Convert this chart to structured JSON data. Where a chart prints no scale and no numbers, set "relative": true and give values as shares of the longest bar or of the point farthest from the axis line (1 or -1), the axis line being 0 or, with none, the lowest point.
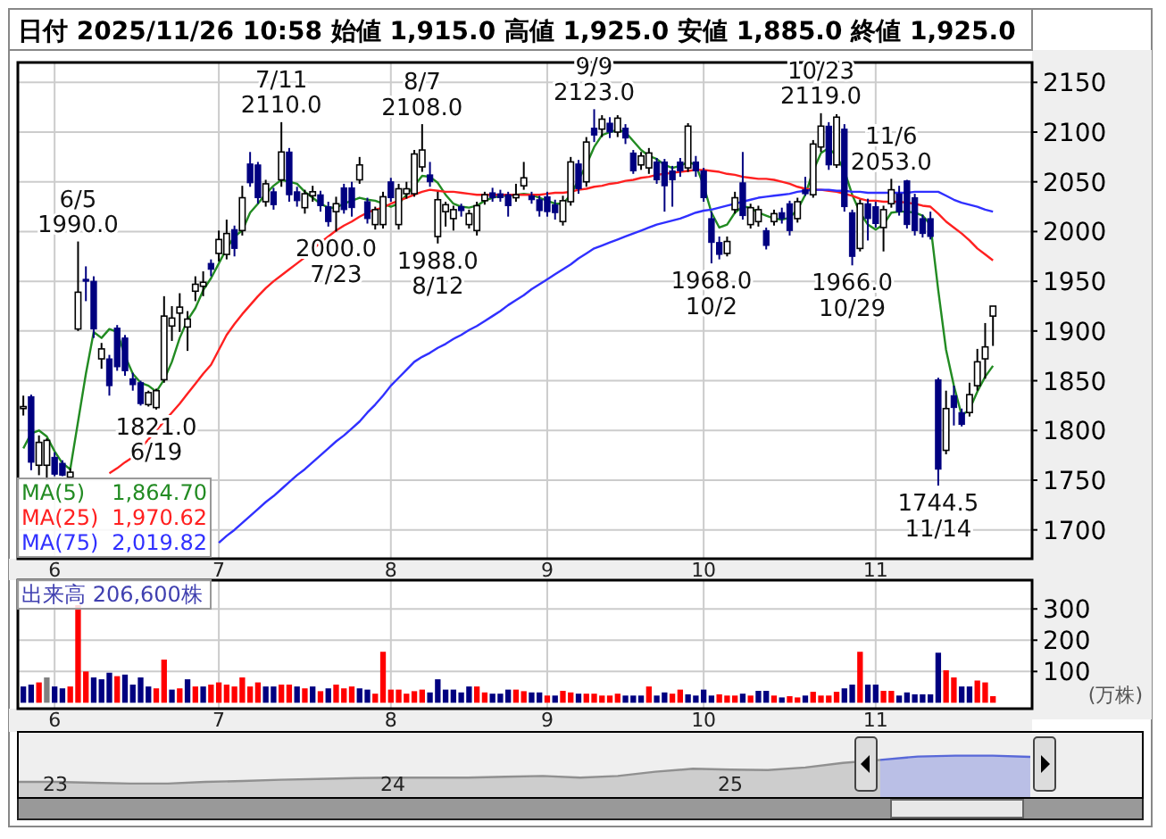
{
  "chart_data": [
    {
      "type": "candlestick",
      "title": "日付 2025/11/26 10:58 始値 1,915.0 高値 1,925.0 安値 1,885.0 終値 1,925.0",
      "categories": [
        null,
        null,
        null,
        null,
        "6",
        null,
        null,
        null,
        null,
        null,
        null,
        null,
        null,
        null,
        null,
        null,
        null,
        null,
        null,
        null,
        null,
        null,
        null,
        null,
        null,
        "7",
        null,
        null,
        null,
        null,
        null,
        null,
        null,
        null,
        null,
        null,
        null,
        null,
        null,
        null,
        null,
        null,
        null,
        null,
        null,
        null,
        null,
        "8",
        null,
        null,
        null,
        null,
        null,
        null,
        null,
        null,
        null,
        null,
        null,
        null,
        null,
        null,
        null,
        null,
        null,
        null,
        null,
        "9",
        null,
        null,
        null,
        null,
        null,
        null,
        null,
        null,
        null,
        null,
        null,
        null,
        null,
        null,
        null,
        null,
        null,
        null,
        null,
        "10",
        null,
        null,
        null,
        null,
        null,
        null,
        null,
        null,
        null,
        null,
        null,
        null,
        null,
        null,
        null,
        null,
        null,
        null,
        null,
        null,
        null,
        "11",
        null,
        null,
        null,
        null,
        null,
        null,
        null,
        null,
        null,
        null,
        null,
        null,
        null,
        null,
        null
      ],
      "ohlc": [
        [
          1822,
          1835,
          1815,
          1824
        ],
        [
          1834,
          1836,
          1760,
          1768
        ],
        [
          1765,
          1795,
          1755,
          1788
        ],
        [
          1765,
          1792,
          1750,
          1790
        ],
        [
          1773,
          1778,
          1754,
          1756
        ],
        [
          1767,
          1770,
          1754,
          1755
        ],
        [
          1753,
          1762,
          1753,
          1758
        ],
        [
          1902,
          1990,
          1900,
          1939
        ],
        [
          1952,
          1965,
          1930,
          1950
        ],
        [
          1950,
          1955,
          1893,
          1902
        ],
        [
          1872,
          1888,
          1862,
          1882
        ],
        [
          1872,
          1876,
          1835,
          1845
        ],
        [
          1903,
          1906,
          1860,
          1864
        ],
        [
          1893,
          1896,
          1855,
          1860
        ],
        [
          1852,
          1858,
          1840,
          1846
        ],
        [
          1848,
          1850,
          1825,
          1827
        ],
        [
          1826,
          1840,
          1824,
          1838
        ],
        [
          1823,
          1842,
          1821,
          1840
        ],
        [
          1851,
          1935,
          1848,
          1915
        ],
        [
          1905,
          1925,
          1890,
          1913
        ],
        [
          1918,
          1938,
          1899,
          1924
        ],
        [
          1904,
          1920,
          1880,
          1912
        ],
        [
          1940,
          1955,
          1930,
          1947
        ],
        [
          1945,
          1960,
          1935,
          1949
        ],
        [
          1968,
          1972,
          1955,
          1962
        ],
        [
          1978,
          2001,
          1970,
          1992
        ],
        [
          1977,
          2012,
          1972,
          1998
        ],
        [
          2002,
          2006,
          1975,
          1983
        ],
        [
          2001,
          2046,
          1996,
          2034
        ],
        [
          2068,
          2080,
          2045,
          2049
        ],
        [
          2067,
          2070,
          2028,
          2034
        ],
        [
          2030,
          2052,
          2025,
          2048
        ],
        [
          2040,
          2044,
          2022,
          2027
        ],
        [
          2052,
          2110,
          2045,
          2080
        ],
        [
          2080,
          2084,
          2030,
          2037
        ],
        [
          2040,
          2045,
          2025,
          2031
        ],
        [
          2024,
          2042,
          2018,
          2038
        ],
        [
          2036,
          2046,
          2030,
          2040
        ],
        [
          2037,
          2041,
          2020,
          2026
        ],
        [
          2025,
          2030,
          2005,
          2010
        ],
        [
          2020,
          2035,
          2000,
          2028
        ],
        [
          2044,
          2048,
          2018,
          2022
        ],
        [
          2044,
          2050,
          2015,
          2024
        ],
        [
          2052,
          2075,
          2048,
          2067
        ],
        [
          2030,
          2034,
          2008,
          2013
        ],
        [
          2007,
          2025,
          2002,
          2022
        ],
        [
          2007,
          2040,
          2003,
          2035
        ],
        [
          2050,
          2054,
          2030,
          2034
        ],
        [
          2007,
          2048,
          2002,
          2043
        ],
        [
          2038,
          2050,
          2033,
          2043
        ],
        [
          2038,
          2082,
          2035,
          2078
        ],
        [
          2065,
          2108,
          2060,
          2082
        ],
        [
          2057,
          2070,
          2045,
          2050
        ],
        [
          1995,
          2040,
          1988,
          2032
        ],
        [
          2020,
          2030,
          2005,
          2027
        ],
        [
          2013,
          2026,
          2001,
          2022
        ],
        [
          2025,
          2028,
          2015,
          2021
        ],
        [
          2007,
          2022,
          2003,
          2018
        ],
        [
          2001,
          2030,
          1996,
          2026
        ],
        [
          2031,
          2040,
          2027,
          2037
        ],
        [
          2039,
          2044,
          2030,
          2034
        ],
        [
          2038,
          2042,
          2030,
          2034
        ],
        [
          2037,
          2040,
          2015,
          2026
        ],
        [
          2034,
          2048,
          2030,
          2037
        ],
        [
          2046,
          2070,
          2042,
          2054
        ],
        [
          2036,
          2040,
          2028,
          2032
        ],
        [
          2032,
          2036,
          2015,
          2021
        ],
        [
          2035,
          2040,
          2015,
          2020
        ],
        [
          2027,
          2032,
          2012,
          2019
        ],
        [
          2010,
          2036,
          2006,
          2031
        ],
        [
          2030,
          2075,
          2026,
          2070
        ],
        [
          2068,
          2072,
          2038,
          2043
        ],
        [
          2050,
          2095,
          2045,
          2090
        ],
        [
          2104,
          2123,
          2090,
          2097
        ],
        [
          2103,
          2117,
          2095,
          2113
        ],
        [
          2109,
          2115,
          2094,
          2100
        ],
        [
          2100,
          2117,
          2095,
          2114
        ],
        [
          2104,
          2108,
          2088,
          2094
        ],
        [
          2079,
          2082,
          2058,
          2061
        ],
        [
          2067,
          2080,
          2062,
          2076
        ],
        [
          2064,
          2084,
          2058,
          2079
        ],
        [
          2070,
          2074,
          2048,
          2052
        ],
        [
          2070,
          2073,
          2020,
          2046
        ],
        [
          2061,
          2066,
          2025,
          2052
        ],
        [
          2070,
          2074,
          2055,
          2061
        ],
        [
          2064,
          2109,
          2060,
          2106
        ],
        [
          2070,
          2076,
          2055,
          2061
        ],
        [
          2061,
          2064,
          2030,
          2034
        ],
        [
          2013,
          2020,
          1968,
          1989
        ],
        [
          1989,
          1995,
          1972,
          1977
        ],
        [
          1978,
          1995,
          1975,
          1990
        ],
        [
          2022,
          2040,
          2018,
          2034
        ],
        [
          2049,
          2080,
          2012,
          2016
        ],
        [
          2007,
          2028,
          2003,
          2024
        ],
        [
          2010,
          2026,
          2005,
          2022
        ],
        [
          2001,
          2004,
          1982,
          1986
        ],
        [
          2010,
          2022,
          2006,
          2018
        ],
        [
          2019,
          2024,
          2008,
          2013
        ],
        [
          2028,
          2031,
          1996,
          2001
        ],
        [
          2013,
          2034,
          2009,
          2030
        ],
        [
          2042,
          2055,
          2036,
          2038
        ],
        [
          2037,
          2092,
          2034,
          2088
        ],
        [
          2085,
          2119,
          2080,
          2106
        ],
        [
          2106,
          2110,
          2062,
          2067
        ],
        [
          2067,
          2118,
          2064,
          2115
        ],
        [
          2103,
          2108,
          2020,
          2025
        ],
        [
          2019,
          2022,
          1966,
          1975
        ],
        [
          1983,
          2032,
          1980,
          2028
        ],
        [
          2028,
          2033,
          1991,
          2013
        ],
        [
          2025,
          2030,
          2004,
          2008
        ],
        [
          2004,
          2026,
          1980,
          2022
        ],
        [
          2028,
          2053,
          2024,
          2042
        ],
        [
          2038,
          2046,
          2016,
          2020
        ],
        [
          2051,
          2052,
          2003,
          2007
        ],
        [
          2034,
          2038,
          1996,
          2001
        ],
        [
          2013,
          2017,
          1994,
          1998
        ],
        [
          2013,
          2020,
          1992,
          1995
        ],
        [
          1851,
          1853,
          1744.5,
          1761
        ],
        [
          1780,
          1840,
          1776,
          1822
        ],
        [
          1835,
          1845,
          1805,
          1823
        ],
        [
          1818,
          1822,
          1804,
          1806
        ],
        [
          1818,
          1848,
          1814,
          1836
        ],
        [
          1845,
          1882,
          1840,
          1869
        ],
        [
          1872,
          1908,
          1852,
          1884
        ],
        [
          1915,
          1925,
          1885,
          1925
        ]
      ],
      "series": [
        {
          "name": "MA(5)",
          "type": "line",
          "color": "#228b22",
          "values": [
            1782,
            1797,
            1800,
            1794,
            1779,
            1767,
            1761,
            1809,
            1857,
            1899,
            1893,
            1902,
            1899,
            1875,
            1857,
            1848,
            1845,
            1839,
            1851,
            1869,
            1893,
            1911,
            1923,
            1941,
            1953,
            1968,
            1983,
            1995,
            2001,
            2019,
            2028,
            2038,
            2046,
            2052,
            2050,
            2048,
            2040,
            2034,
            2028,
            2024,
            2024,
            2028,
            2031,
            2034,
            2032,
            2031,
            2028,
            2025,
            2028,
            2037,
            2046,
            2056,
            2055,
            2049,
            2037,
            2028,
            2025,
            2024,
            2026,
            2031,
            2034,
            2036,
            2036,
            2037,
            2038,
            2037,
            2034,
            2031,
            2028,
            2028,
            2037,
            2052,
            2067,
            2085,
            2097,
            2100,
            2102,
            2100,
            2091,
            2082,
            2076,
            2073,
            2067,
            2064,
            2066,
            2070,
            2067,
            2046,
            2019,
            2004,
            2007,
            2019,
            2025,
            2024,
            2019,
            2016,
            2013,
            2012,
            2014,
            2022,
            2037,
            2061,
            2079,
            2084,
            2076,
            2061,
            2037,
            2019,
            2007,
            2002,
            2007,
            2019,
            2020,
            2020,
            2019,
            2016,
            2007,
            1941,
            1881,
            1845,
            1815,
            1821,
            1839,
            1854,
            1865
          ]
        },
        {
          "name": "MA(25)",
          "type": "line",
          "color": "#ff2020",
          "values": [
            null,
            null,
            null,
            null,
            null,
            null,
            null,
            null,
            null,
            null,
            null,
            1757,
            1762,
            1768,
            1773,
            1782,
            1791,
            1800,
            1809,
            1818,
            1827,
            1837,
            1847,
            1857,
            1866,
            1881,
            1896,
            1907,
            1917,
            1926,
            1935,
            1943,
            1950,
            1956,
            1962,
            1968,
            1974,
            1982,
            1989,
            1995,
            2001,
            2006,
            2010,
            2015,
            2019,
            2022,
            2024,
            2028,
            2031,
            2034,
            2037,
            2040,
            2042,
            2041,
            2040,
            2040,
            2039,
            2038,
            2037,
            2037,
            2037,
            2037,
            2037,
            2037,
            2037,
            2037,
            2037,
            2038,
            2039,
            2039,
            2040,
            2042,
            2043,
            2045,
            2046,
            2048,
            2049,
            2051,
            2052,
            2054,
            2055,
            2057,
            2058,
            2059,
            2060,
            2061,
            2062,
            2062,
            2061,
            2060,
            2058,
            2057,
            2055,
            2054,
            2053,
            2053,
            2052,
            2050,
            2048,
            2045,
            2043,
            2042,
            2042,
            2041,
            2040,
            2038,
            2036,
            2033,
            2031,
            2031,
            2030,
            2030,
            2030,
            2029,
            2028,
            2026,
            2025,
            2018,
            2010,
            2004,
            1998,
            1991,
            1983,
            1977,
            1971
          ]
        },
        {
          "name": "MA(75)",
          "type": "line",
          "color": "#3030ff",
          "values": [
            null,
            null,
            null,
            null,
            null,
            null,
            null,
            null,
            null,
            null,
            null,
            null,
            null,
            null,
            null,
            null,
            null,
            null,
            null,
            null,
            null,
            null,
            null,
            null,
            null,
            1687,
            1694,
            1700,
            1707,
            1714,
            1721,
            1728,
            1734,
            1741,
            1748,
            1755,
            1761,
            1768,
            1775,
            1782,
            1789,
            1795,
            1802,
            1809,
            1818,
            1826,
            1835,
            1845,
            1853,
            1861,
            1869,
            1874,
            1878,
            1883,
            1887,
            1892,
            1896,
            1901,
            1905,
            1910,
            1915,
            1920,
            1926,
            1931,
            1936,
            1942,
            1947,
            1952,
            1957,
            1962,
            1967,
            1973,
            1978,
            1983,
            1986,
            1989,
            1992,
            1995,
            1998,
            2001,
            2004,
            2007,
            2009,
            2011,
            2013,
            2016,
            2019,
            2021,
            2022,
            2024,
            2026,
            2028,
            2030,
            2032,
            2034,
            2035,
            2036,
            2037,
            2038,
            2040,
            2041,
            2042,
            2042,
            2042,
            2041,
            2041,
            2040,
            2040,
            2039,
            2039,
            2039,
            2039,
            2039,
            2039,
            2040,
            2040,
            2040,
            2040,
            2036,
            2032,
            2029,
            2027,
            2025,
            2022,
            2020
          ]
        }
      ],
      "ylim": [
        1671,
        2170
      ],
      "yticks": [
        1700,
        1750,
        1800,
        1850,
        1900,
        1950,
        2000,
        2050,
        2100,
        2150
      ],
      "grid": true,
      "legend": "bottom left",
      "annotations": [
        "6/5\n1990.0",
        "1821.0\n6/19",
        "7/11\n2110.0",
        "2000.0\n7/23",
        "8/7\n2108.0",
        "1988.0\n8/12",
        "9/9\n2123.0",
        "1968.0\n10/2",
        "10/23\n2119.0",
        "1966.0\n10/29",
        "11/6\n2053.0",
        "1744.5\n11/14",
        "1,864.70",
        "1,970.62",
        "2,019.82"
      ]
    },
    {
      "type": "bar",
      "title": "出来高 206,600株",
      "ylabel": "(万株)",
      "categories": [
        null,
        null,
        null,
        null,
        "6",
        null,
        null,
        null,
        null,
        null,
        null,
        null,
        null,
        null,
        null,
        null,
        null,
        null,
        null,
        null,
        null,
        null,
        null,
        null,
        null,
        "7",
        null,
        null,
        null,
        null,
        null,
        null,
        null,
        null,
        null,
        null,
        null,
        null,
        null,
        null,
        null,
        null,
        null,
        null,
        null,
        null,
        null,
        "8",
        null,
        null,
        null,
        null,
        null,
        null,
        null,
        null,
        null,
        null,
        null,
        null,
        null,
        null,
        null,
        null,
        null,
        null,
        null,
        "9",
        null,
        null,
        null,
        null,
        null,
        null,
        null,
        null,
        null,
        null,
        null,
        null,
        null,
        null,
        null,
        null,
        null,
        null,
        null,
        "10",
        null,
        null,
        null,
        null,
        null,
        null,
        null,
        null,
        null,
        null,
        null,
        null,
        null,
        null,
        null,
        null,
        null,
        null,
        null,
        null,
        null,
        "11",
        null,
        null,
        null,
        null,
        null,
        null,
        null,
        null,
        null,
        null,
        null,
        null,
        null,
        null,
        null
      ],
      "values": [
        52,
        58,
        65,
        81,
        52,
        46,
        52,
        312,
        100,
        81,
        75,
        96,
        85,
        90,
        58,
        81,
        52,
        46,
        138,
        42,
        46,
        75,
        52,
        52,
        58,
        65,
        58,
        52,
        81,
        52,
        65,
        52,
        52,
        58,
        58,
        52,
        46,
        52,
        37,
        46,
        58,
        46,
        52,
        46,
        42,
        29,
        163,
        42,
        42,
        29,
        37,
        42,
        33,
        75,
        42,
        42,
        33,
        52,
        52,
        33,
        29,
        29,
        42,
        42,
        37,
        33,
        33,
        23,
        23,
        38,
        33,
        29,
        29,
        29,
        23,
        23,
        29,
        23,
        23,
        23,
        52,
        23,
        33,
        29,
        42,
        27,
        23,
        42,
        23,
        27,
        23,
        23,
        29,
        23,
        38,
        38,
        23,
        17,
        21,
        17,
        23,
        35,
        23,
        23,
        35,
        46,
        58,
        163,
        58,
        58,
        38,
        38,
        23,
        33,
        27,
        27,
        27,
        160,
        104,
        81,
        52,
        52,
        71,
        65,
        21
      ],
      "colors": [
        "#000080",
        "#000080",
        "#ff0000",
        "#808080",
        "#000080",
        "#000080",
        "#ff0000",
        "#ff0000",
        "#ff0000",
        "#000080",
        "#000080",
        "#000080",
        "#ff0000",
        "#000080",
        "#000080",
        "#000080",
        "#000080",
        "#ff0000",
        "#ff0000",
        "#000080",
        "#ff0000",
        "#000080",
        "#ff0000",
        "#000080",
        "#ff0000",
        "#ff0000",
        "#ff0000",
        "#ff0000",
        "#ff0000",
        "#ff0000",
        "#ff0000",
        "#000080",
        "#000080",
        "#ff0000",
        "#ff0000",
        "#000080",
        "#ff0000",
        "#000080",
        "#ff0000",
        "#000080",
        "#ff0000",
        "#ff0000",
        "#ff0000",
        "#000080",
        "#000080",
        "#ff0000",
        "#ff0000",
        "#ff0000",
        "#ff0000",
        "#ff0000",
        "#ff0000",
        "#ff0000",
        "#000080",
        "#000080",
        "#000080",
        "#000080",
        "#000080",
        "#000080",
        "#ff0000",
        "#ff0000",
        "#000080",
        "#000080",
        "#000080",
        "#ff0000",
        "#ff0000",
        "#000080",
        "#000080",
        "#ff0000",
        "#000080",
        "#ff0000",
        "#ff0000",
        "#000080",
        "#ff0000",
        "#ff0000",
        "#ff0000",
        "#ff0000",
        "#ff0000",
        "#000080",
        "#000080",
        "#000080",
        "#ff0000",
        "#000080",
        "#000080",
        "#ff0000",
        "#ff0000",
        "#000080",
        "#000080",
        "#000080",
        "#000080",
        "#ff0000",
        "#ff0000",
        "#ff0000",
        "#000080",
        "#ff0000",
        "#000080",
        "#000080",
        "#ff0000",
        "#000080",
        "#ff0000",
        "#ff0000",
        "#000080",
        "#ff0000",
        "#ff0000",
        "#ff0000",
        "#ff0000",
        "#000080",
        "#000080",
        "#ff0000",
        "#000080",
        "#000080",
        "#ff0000",
        "#ff0000",
        "#000080",
        "#000080",
        "#000080",
        "#000080",
        "#000080",
        "#000080",
        "#ff0000",
        "#ff0000",
        "#000080",
        "#000080",
        "#ff0000",
        "#ff0000",
        "#ff0000"
      ],
      "ylim": [
        -19,
        392
      ],
      "yticks": [
        100,
        200,
        300
      ],
      "grid": true
    },
    {
      "type": "area",
      "relative": true,
      "categories": [
        null,
        "23",
        null,
        null,
        null,
        null,
        null,
        null,
        null,
        null,
        "24",
        null,
        null,
        null,
        null,
        null,
        null,
        null,
        null,
        "25",
        null,
        null,
        null,
        null,
        null,
        null,
        null,
        null,
        null,
        null,
        null
      ],
      "series": [
        {
          "color": "#909090",
          "values": [
            0.38,
            0.38,
            0.36,
            0.34,
            0.34,
            0.38,
            0.4,
            0.43,
            0.45,
            0.47,
            0.48,
            0.48,
            0.48,
            0.5,
            0.52,
            0.48,
            0.52,
            0.62,
            0.69,
            0.67,
            0.66,
            0.72,
            0.83,
            0.9,
            null,
            null,
            null,
            null,
            null,
            null,
            null
          ]
        },
        {
          "color": "#5868d8",
          "values": [
            null,
            null,
            null,
            null,
            null,
            null,
            null,
            null,
            null,
            null,
            null,
            null,
            null,
            null,
            null,
            null,
            null,
            null,
            null,
            null,
            null,
            null,
            null,
            0.9,
            0.98,
            1,
            1,
            0.97,
            null,
            null,
            null
          ]
        }
      ]
    }
  ]
}
